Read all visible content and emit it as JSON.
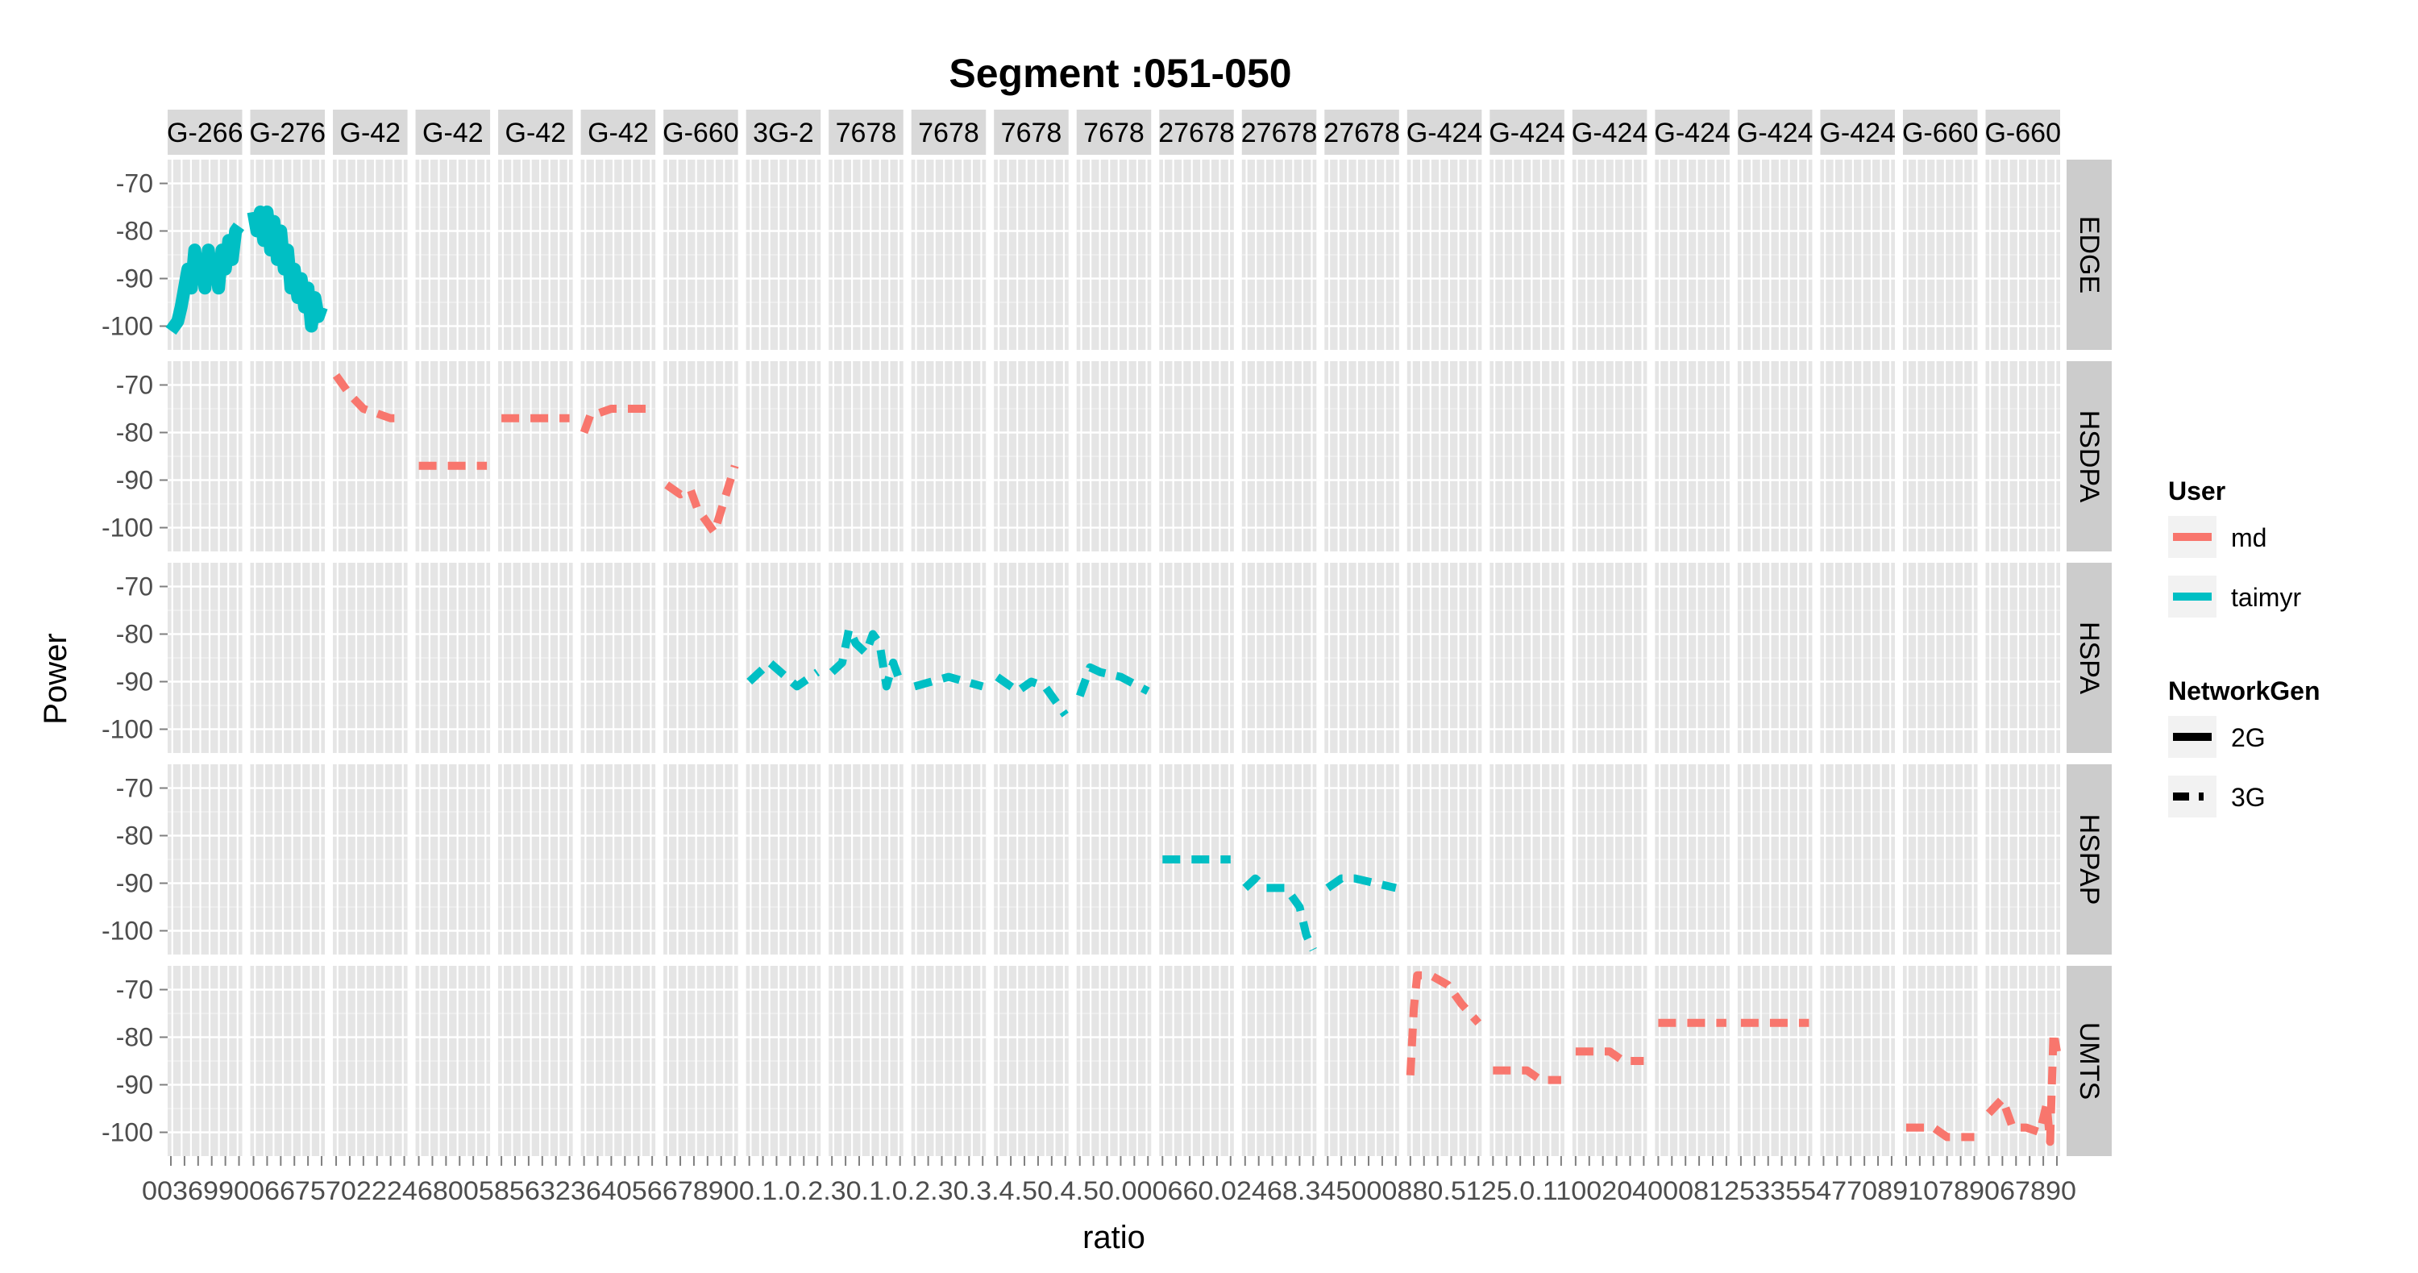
{
  "chart_data": {
    "type": "line",
    "title": "Segment :051-050",
    "xlabel": "ratio",
    "ylabel": "Power",
    "ylim": [
      -105,
      -65
    ],
    "y_ticks": [
      -70,
      -80,
      -90,
      -100
    ],
    "y_tick_labels": [
      "-70",
      "-80",
      "-90",
      "-100"
    ],
    "grid": true,
    "legend_position": "right",
    "row_strips": [
      "EDGE",
      "HSDPA",
      "HSPA",
      "HSPAP",
      "UMTS"
    ],
    "column_strips": [
      "G-266",
      "G-276",
      "G-42",
      "G-42",
      "G-42",
      "G-42",
      "G-660",
      "3G-2",
      "7678",
      "7678",
      "7678",
      "7678",
      "27678",
      "27678",
      "27678",
      "G-424",
      "G-424",
      "G-424",
      "G-424",
      "G-424",
      "G-424",
      "G-660",
      "G-660"
    ],
    "x_tick_label_text": "0036990066757022246800585632364056678900.1.0.2.30.1.0.2.30.3.4.50.4.50.000660.02468.345000880.5125.0.11002040008125335547708910789067890",
    "legend": {
      "user_title": "User",
      "user_entries": [
        {
          "label": "md",
          "color": "#F8766D"
        },
        {
          "label": "taimyr",
          "color": "#00BFC4"
        }
      ],
      "gen_title": "NetworkGen",
      "gen_entries": [
        {
          "label": "2G",
          "dash": "solid"
        },
        {
          "label": "3G",
          "dash": "dashed"
        }
      ]
    },
    "series": [
      {
        "user": "taimyr",
        "gen": "2G",
        "row": 0,
        "col": 0,
        "x": [
          0.0,
          0.1,
          0.15,
          0.2,
          0.25,
          0.3,
          0.35,
          0.4,
          0.45,
          0.5,
          0.55,
          0.6,
          0.65,
          0.7,
          0.75,
          0.8,
          0.85,
          0.9,
          0.95,
          1.0
        ],
        "y": [
          -101,
          -99,
          -96,
          -92,
          -88,
          -92,
          -84,
          -90,
          -86,
          -92,
          -84,
          -90,
          -86,
          -92,
          -84,
          -88,
          -82,
          -86,
          -80,
          -79
        ]
      },
      {
        "user": "taimyr",
        "gen": "2G",
        "row": 0,
        "col": 1,
        "x": [
          0.0,
          0.05,
          0.1,
          0.15,
          0.2,
          0.25,
          0.3,
          0.35,
          0.4,
          0.45,
          0.5,
          0.55,
          0.6,
          0.65,
          0.7,
          0.75,
          0.8,
          0.85,
          0.9,
          0.95,
          1.0
        ],
        "y": [
          -76,
          -80,
          -76,
          -82,
          -76,
          -84,
          -78,
          -86,
          -80,
          -88,
          -84,
          -92,
          -88,
          -94,
          -90,
          -96,
          -92,
          -100,
          -94,
          -98,
          -96
        ]
      },
      {
        "user": "md",
        "gen": "3G",
        "row": 1,
        "col": 2,
        "x": [
          0.0,
          0.2,
          0.4,
          0.6,
          0.8,
          1.0
        ],
        "y": [
          -68,
          -72,
          -75,
          -76,
          -77,
          -77
        ]
      },
      {
        "user": "md",
        "gen": "3G",
        "row": 1,
        "col": 3,
        "x": [
          0.0,
          1.0
        ],
        "y": [
          -87,
          -87
        ]
      },
      {
        "user": "md",
        "gen": "3G",
        "row": 1,
        "col": 4,
        "x": [
          0.0,
          1.0
        ],
        "y": [
          -77,
          -77
        ]
      },
      {
        "user": "md",
        "gen": "3G",
        "row": 1,
        "col": 5,
        "x": [
          0.0,
          0.1,
          0.2,
          0.4,
          1.0
        ],
        "y": [
          -80,
          -76,
          -76,
          -75,
          -75
        ]
      },
      {
        "user": "md",
        "gen": "3G",
        "row": 1,
        "col": 6,
        "x": [
          0.0,
          0.2,
          0.35,
          0.45,
          0.55,
          0.7,
          0.85,
          1.0
        ],
        "y": [
          -91,
          -93,
          -92,
          -96,
          -98,
          -101,
          -94,
          -87
        ]
      },
      {
        "user": "taimyr",
        "gen": "3G",
        "row": 2,
        "col": 7,
        "x": [
          0.0,
          0.3,
          0.7,
          1.0
        ],
        "y": [
          -90,
          -86,
          -91,
          -88
        ]
      },
      {
        "user": "taimyr",
        "gen": "3G",
        "row": 2,
        "col": 8,
        "x": [
          0.0,
          0.15,
          0.25,
          0.35,
          0.5,
          0.6,
          0.7,
          0.8,
          0.9,
          1.0
        ],
        "y": [
          -88,
          -86,
          -79,
          -82,
          -84,
          -80,
          -82,
          -91,
          -86,
          -90
        ]
      },
      {
        "user": "taimyr",
        "gen": "3G",
        "row": 2,
        "col": 9,
        "x": [
          0.0,
          0.5,
          1.0
        ],
        "y": [
          -91,
          -89,
          -91
        ]
      },
      {
        "user": "taimyr",
        "gen": "3G",
        "row": 2,
        "col": 10,
        "x": [
          0.0,
          0.3,
          0.5,
          0.7,
          0.85,
          1.0
        ],
        "y": [
          -89,
          -92,
          -90,
          -91,
          -94,
          -97
        ]
      },
      {
        "user": "taimyr",
        "gen": "3G",
        "row": 2,
        "col": 11,
        "x": [
          0.0,
          0.15,
          0.3,
          0.6,
          1.0
        ],
        "y": [
          -93,
          -87,
          -88,
          -89,
          -92
        ]
      },
      {
        "user": "taimyr",
        "gen": "3G",
        "row": 3,
        "col": 12,
        "x": [
          0.0,
          1.0
        ],
        "y": [
          -85,
          -85
        ]
      },
      {
        "user": "taimyr",
        "gen": "3G",
        "row": 3,
        "col": 13,
        "x": [
          0.0,
          0.15,
          0.3,
          0.6,
          0.8,
          0.9,
          1.0
        ],
        "y": [
          -91,
          -89,
          -91,
          -91,
          -95,
          -101,
          -104
        ]
      },
      {
        "user": "taimyr",
        "gen": "3G",
        "row": 3,
        "col": 14,
        "x": [
          0.0,
          0.2,
          0.4,
          0.7,
          1.0
        ],
        "y": [
          -91,
          -89,
          -89,
          -90,
          -91
        ]
      },
      {
        "user": "md",
        "gen": "3G",
        "row": 4,
        "col": 15,
        "x": [
          0.0,
          0.05,
          0.1,
          0.3,
          0.55,
          0.75,
          1.0
        ],
        "y": [
          -88,
          -74,
          -67,
          -67,
          -69,
          -73,
          -77
        ]
      },
      {
        "user": "md",
        "gen": "3G",
        "row": 4,
        "col": 16,
        "x": [
          0.0,
          0.5,
          0.7,
          1.0
        ],
        "y": [
          -87,
          -87,
          -89,
          -89
        ]
      },
      {
        "user": "md",
        "gen": "3G",
        "row": 4,
        "col": 17,
        "x": [
          0.0,
          0.5,
          0.7,
          1.0
        ],
        "y": [
          -83,
          -83,
          -85,
          -85
        ]
      },
      {
        "user": "md",
        "gen": "3G",
        "row": 4,
        "col": 18,
        "x": [
          0.0,
          1.0
        ],
        "y": [
          -77,
          -77
        ]
      },
      {
        "user": "md",
        "gen": "3G",
        "row": 4,
        "col": 19,
        "x": [
          0.0,
          1.0
        ],
        "y": [
          -77,
          -77
        ]
      },
      {
        "user": "md",
        "gen": "3G",
        "row": 4,
        "col": 21,
        "x": [
          0.0,
          0.4,
          0.6,
          1.0
        ],
        "y": [
          -99,
          -99,
          -101,
          -101
        ]
      },
      {
        "user": "md",
        "gen": "3G",
        "row": 4,
        "col": 22,
        "x": [
          0.0,
          0.2,
          0.35,
          0.55,
          0.75,
          0.85,
          0.9,
          0.95,
          1.0
        ],
        "y": [
          -96,
          -93,
          -99,
          -99,
          -100,
          -94,
          -102,
          -79,
          -83
        ]
      }
    ]
  }
}
